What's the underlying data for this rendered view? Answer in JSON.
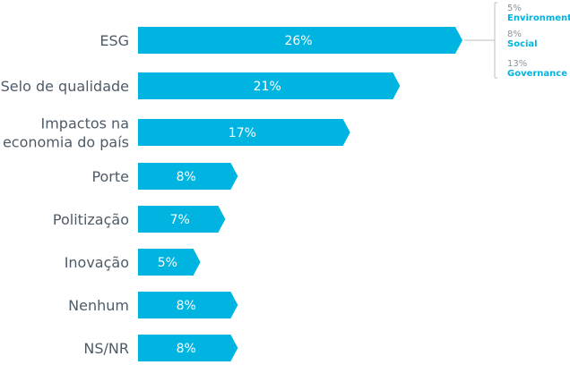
{
  "colors": {
    "bar": "#00b4e1",
    "label": "#4e5b67",
    "breakdown_pct": "#8a949c",
    "bracket": "#b8c0c6"
  },
  "chart_data": {
    "type": "bar",
    "orientation": "horizontal",
    "categories": [
      "ESG",
      "Selo de qualidade",
      "Impactos na economia do país",
      "Porte",
      "Politização",
      "Inovação",
      "Nenhum",
      "NS/NR"
    ],
    "category_lines": [
      [
        "ESG"
      ],
      [
        "Selo de qualidade"
      ],
      [
        "Impactos na",
        "economia do país"
      ],
      [
        "Porte"
      ],
      [
        "Politização"
      ],
      [
        "Inovação"
      ],
      [
        "Nenhum"
      ],
      [
        "NS/NR"
      ]
    ],
    "values": [
      26,
      21,
      17,
      8,
      7,
      5,
      8,
      8
    ],
    "value_labels": [
      "26%",
      "21%",
      "17%",
      "8%",
      "7%",
      "5%",
      "8%",
      "8%"
    ],
    "breakdown": {
      "category": "ESG",
      "items": [
        {
          "pct": "5%",
          "name": "Environmental",
          "value": 5
        },
        {
          "pct": "8%",
          "name": "Social",
          "value": 8
        },
        {
          "pct": "13%",
          "name": "Governance",
          "value": 13
        }
      ]
    },
    "xlim": [
      0,
      26
    ],
    "grid": false,
    "legend": "none"
  }
}
